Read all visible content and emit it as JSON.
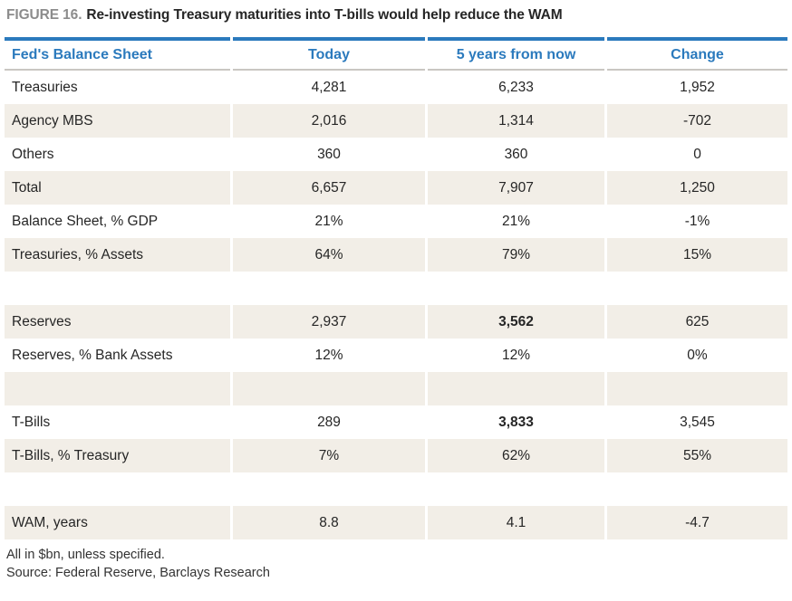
{
  "figure": {
    "label": "FIGURE 16.",
    "heading": "Re-investing Treasury maturities into T-bills would help reduce the WAM"
  },
  "table": {
    "columns": [
      "Fed's Balance Sheet",
      "Today",
      "5 years from now",
      "Change"
    ],
    "rows": [
      {
        "label": "Treasuries",
        "today": "4,281",
        "five_years": "6,233",
        "change": "1,952"
      },
      {
        "label": "Agency MBS",
        "today": "2,016",
        "five_years": "1,314",
        "change": "-702"
      },
      {
        "label": "Others",
        "today": "360",
        "five_years": "360",
        "change": "0"
      },
      {
        "label": "Total",
        "today": "6,657",
        "five_years": "7,907",
        "change": "1,250"
      },
      {
        "label": "Balance Sheet, % GDP",
        "today": "21%",
        "five_years": "21%",
        "change": "-1%"
      },
      {
        "label": "Treasuries, % Assets",
        "today": "64%",
        "five_years": "79%",
        "change": "15%"
      },
      {
        "label": "",
        "today": "",
        "five_years": "",
        "change": ""
      },
      {
        "label": "Reserves",
        "today": "2,937",
        "five_years": "3,562",
        "change": "625",
        "bold_five_years": true
      },
      {
        "label": "Reserves, % Bank Assets",
        "today": "12%",
        "five_years": "12%",
        "change": "0%"
      },
      {
        "label": "",
        "today": "",
        "five_years": "",
        "change": ""
      },
      {
        "label": "T-Bills",
        "today": "289",
        "five_years": "3,833",
        "change": "3,545",
        "bold_five_years": true
      },
      {
        "label": "T-Bills, % Treasury",
        "today": "7%",
        "five_years": "62%",
        "change": "55%"
      },
      {
        "label": "",
        "today": "",
        "five_years": "",
        "change": ""
      },
      {
        "label": "WAM, years",
        "today": "8.8",
        "five_years": "4.1",
        "change": "-4.7"
      }
    ]
  },
  "footnotes": [
    "All in $bn, unless specified.",
    "Source: Federal Reserve, Barclays Research"
  ],
  "colors": {
    "accent": "#2b7abd",
    "stripe": "#f2eee7",
    "rule": "#c9c7c2",
    "muted": "#8c8c8c",
    "ink": "#262626"
  },
  "chart_data": {
    "type": "table",
    "title": "FIGURE 16. Re-investing Treasury maturities into T-bills would help reduce the WAM",
    "columns": [
      "Fed's Balance Sheet",
      "Today",
      "5 years from now",
      "Change"
    ],
    "rows": [
      [
        "Treasuries",
        4281,
        6233,
        1952
      ],
      [
        "Agency MBS",
        2016,
        1314,
        -702
      ],
      [
        "Others",
        360,
        360,
        0
      ],
      [
        "Total",
        6657,
        7907,
        1250
      ],
      [
        "Balance Sheet, % GDP",
        "21%",
        "21%",
        "-1%"
      ],
      [
        "Treasuries, % Assets",
        "64%",
        "79%",
        "15%"
      ],
      [
        "Reserves",
        2937,
        3562,
        625
      ],
      [
        "Reserves, % Bank Assets",
        "12%",
        "12%",
        "0%"
      ],
      [
        "T-Bills",
        289,
        3833,
        3545
      ],
      [
        "T-Bills, % Treasury",
        "7%",
        "62%",
        "55%"
      ],
      [
        "WAM, years",
        8.8,
        4.1,
        -4.7
      ]
    ],
    "emphasized_cells": [
      {
        "row": "Reserves",
        "column": "5 years from now",
        "value": 3562
      },
      {
        "row": "T-Bills",
        "column": "5 years from now",
        "value": 3833
      }
    ],
    "notes": [
      "All in $bn, unless specified.",
      "Source: Federal Reserve, Barclays Research"
    ],
    "layout": {
      "row_striping": true,
      "stripe_color": "#f2eee7",
      "header_color": "#2b7abd"
    }
  }
}
